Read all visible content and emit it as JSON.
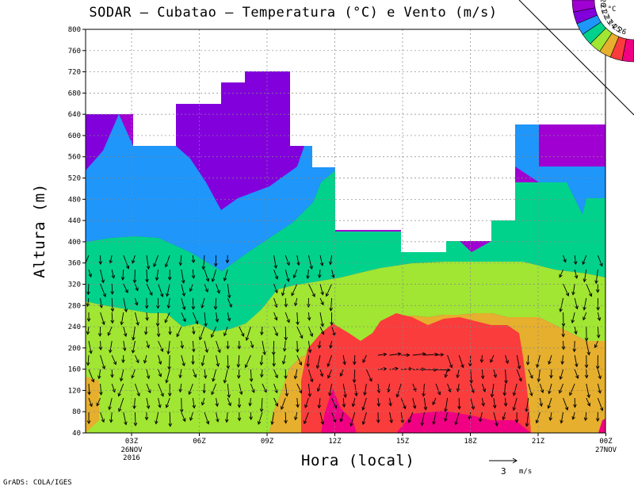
{
  "chart_data": {
    "type": "heatmap",
    "title": "SODAR – Cubatao – Temperatura (°C) e Vento (m/s)",
    "xlabel": "Hora (local)",
    "ylabel": "Altura (m)",
    "ylim": [
      40,
      800
    ],
    "y_ticks": [
      40,
      80,
      120,
      160,
      200,
      240,
      280,
      320,
      360,
      400,
      440,
      480,
      520,
      560,
      600,
      640,
      680,
      720,
      760,
      800
    ],
    "x_ticks": [
      {
        "label": "03Z",
        "sub": [
          "26NOV",
          "2016"
        ]
      },
      {
        "label": "06Z",
        "sub": []
      },
      {
        "label": "09Z",
        "sub": []
      },
      {
        "label": "12Z",
        "sub": []
      },
      {
        "label": "15Z",
        "sub": []
      },
      {
        "label": "18Z",
        "sub": []
      },
      {
        "label": "21Z",
        "sub": []
      },
      {
        "label": "00Z",
        "sub": [
          "27NOV"
        ]
      }
    ],
    "color_levels": [
      {
        "temp": 20,
        "color": "#a000d2"
      },
      {
        "temp": 21,
        "color": "#8200dc"
      },
      {
        "temp": 22,
        "color": "#1e96fa"
      },
      {
        "temp": 23,
        "color": "#00d28c"
      },
      {
        "temp": 24,
        "color": "#a0e632"
      },
      {
        "temp": 25,
        "color": "#e6af2d"
      },
      {
        "temp": 26,
        "color": "#fa3c3c"
      },
      {
        "temp": 27,
        "color": "#f00082"
      }
    ],
    "colorbar_labels": [
      "20",
      "21",
      "22",
      "23",
      "24",
      "25",
      "26",
      "°C"
    ],
    "wind_reference": {
      "value": "3",
      "unit": "m/s"
    },
    "grid": true
  },
  "footer": {
    "credit": "GrADS: COLA/IGES"
  }
}
